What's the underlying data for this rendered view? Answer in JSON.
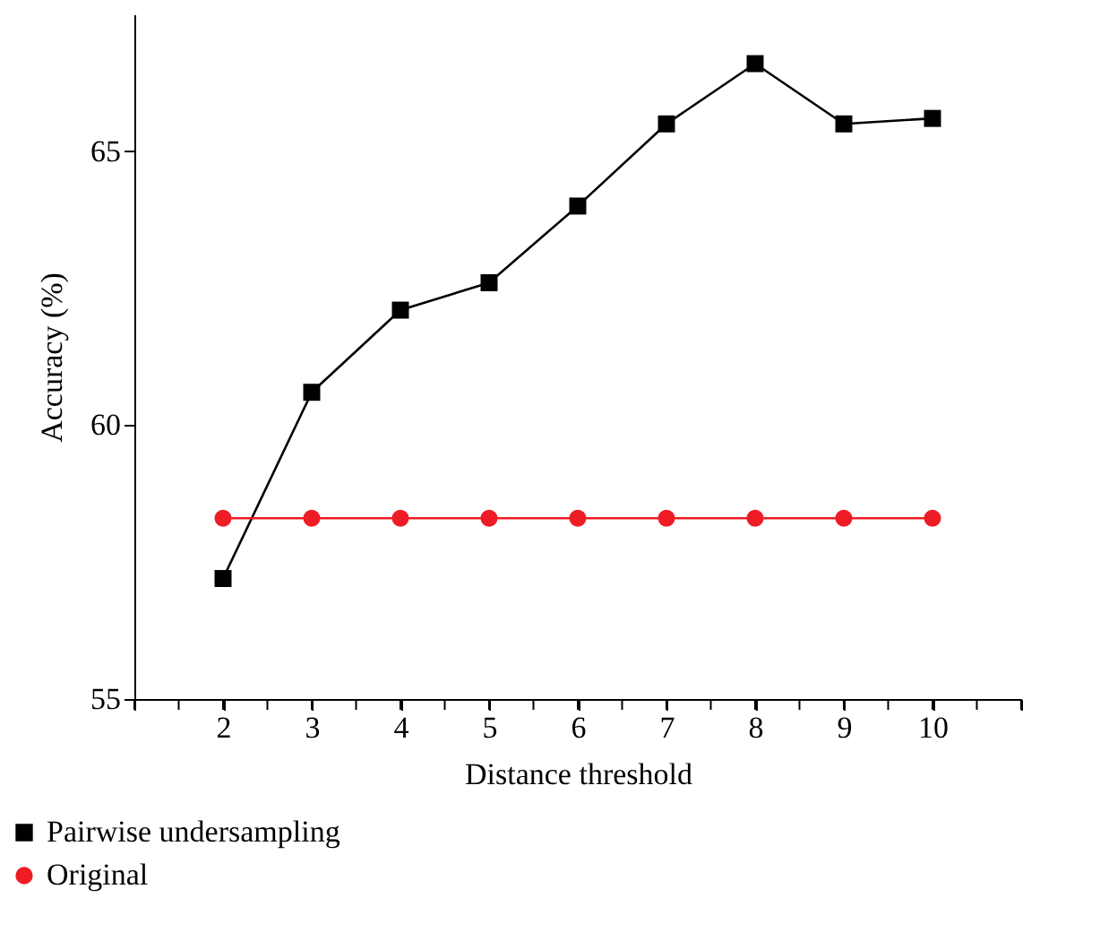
{
  "chart_data": {
    "type": "line",
    "xlabel": "Distance threshold",
    "ylabel": "Accuracy (%)",
    "x": [
      2,
      3,
      4,
      5,
      6,
      7,
      8,
      9,
      10
    ],
    "series": [
      {
        "name": "Pairwise undersampling",
        "color": "#000000",
        "marker": "square",
        "values": [
          57.2,
          60.6,
          62.1,
          62.6,
          64.0,
          65.5,
          66.6,
          65.5,
          65.6
        ]
      },
      {
        "name": "Original",
        "color": "#ee1c25",
        "marker": "circle",
        "values": [
          58.3,
          58.3,
          58.3,
          58.3,
          58.3,
          58.3,
          58.3,
          58.3,
          58.3
        ]
      }
    ],
    "xlim": [
      1,
      11
    ],
    "xticks": [
      {
        "value": 1,
        "label": null
      },
      {
        "value": 1.5,
        "label": null
      },
      2,
      {
        "value": 2.5,
        "label": null
      },
      3,
      {
        "value": 3.5,
        "label": null
      },
      4,
      {
        "value": 4.5,
        "label": null
      },
      5,
      {
        "value": 5.5,
        "label": null
      },
      6,
      {
        "value": 6.5,
        "label": null
      },
      7,
      {
        "value": 7.5,
        "label": null
      },
      8,
      {
        "value": 8.5,
        "label": null
      },
      9,
      {
        "value": 9.5,
        "label": null
      },
      10,
      {
        "value": 10.5,
        "label": null
      },
      {
        "value": 11,
        "label": null
      }
    ],
    "ylim": [
      55,
      67.5
    ],
    "yticks": [
      55,
      60,
      65
    ],
    "grid": false,
    "legend": "bottom left",
    "line_style": "solid"
  }
}
